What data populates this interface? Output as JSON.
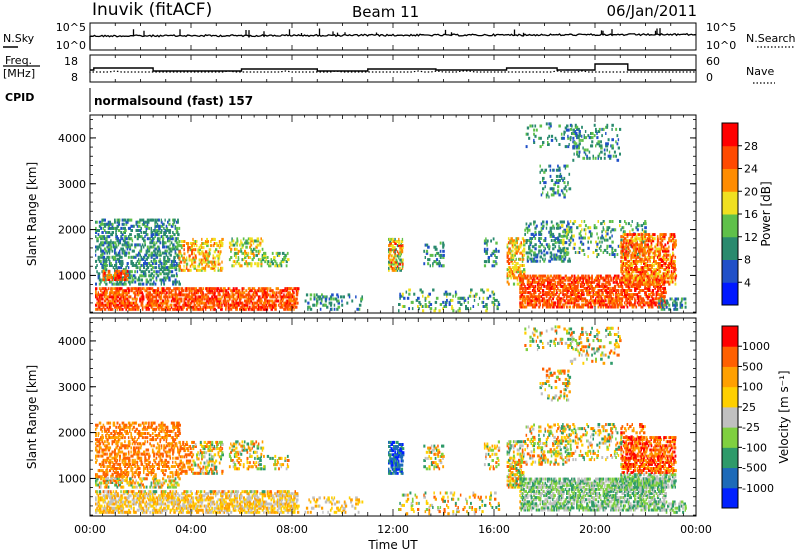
{
  "header": {
    "station": "Inuvik (fitACF)",
    "beam": "Beam 11",
    "date": "06/Jan/2011"
  },
  "panels": {
    "nsky": {
      "left_label": "N.Sky",
      "left_ticks": [
        "10^5",
        "10^0"
      ],
      "right_ticks": [
        "10^5",
        "10^0"
      ],
      "right_label": "N.Search"
    },
    "freq": {
      "left_label_1": "Freq.",
      "left_label_2": "[MHz]",
      "left_ticks": [
        "18",
        "8"
      ],
      "right_ticks": [
        "60",
        "0"
      ],
      "right_label": "Nave"
    },
    "cpid": {
      "label": "CPID",
      "mode": "normalsound (fast) 157"
    }
  },
  "chart_data": [
    {
      "type": "heatmap",
      "name": "power",
      "ylabel": "Slant Range [km]",
      "yticks": [
        "1000",
        "2000",
        "3000",
        "4000"
      ],
      "ylim": [
        180,
        4500
      ],
      "xticks": [
        "00:00",
        "04:00",
        "08:00",
        "12:00",
        "16:00",
        "20:00",
        "00:00"
      ],
      "xlim": [
        0,
        24
      ],
      "colorbar": {
        "label": "Power [dB]",
        "ticks": [
          "4",
          "8",
          "12",
          "16",
          "20",
          "24",
          "28"
        ],
        "colors": [
          "#0018ff",
          "#2050c8",
          "#2a8a6e",
          "#5fc04a",
          "#f0e020",
          "#ff8c00",
          "#ff4a00",
          "#ff0000"
        ]
      }
    },
    {
      "type": "heatmap",
      "name": "velocity",
      "ylabel": "Slant Range [km]",
      "yticks": [
        "1000",
        "2000",
        "3000",
        "4000"
      ],
      "ylim": [
        180,
        4500
      ],
      "xticks": [
        "00:00",
        "04:00",
        "08:00",
        "12:00",
        "16:00",
        "20:00",
        "00:00"
      ],
      "xlim": [
        0,
        24
      ],
      "xlabel": "Time UT",
      "colorbar": {
        "label": "Velocity [m s⁻¹]",
        "ticks": [
          "1000",
          "500",
          "100",
          "25",
          "-25",
          "-100",
          "-500",
          "-1000"
        ],
        "colors": [
          "#0020ff",
          "#1d6ab8",
          "#2e9a6a",
          "#7fd040",
          "#c0c0c0",
          "#ffd000",
          "#ffa000",
          "#ff6000",
          "#ff0000"
        ]
      }
    }
  ]
}
